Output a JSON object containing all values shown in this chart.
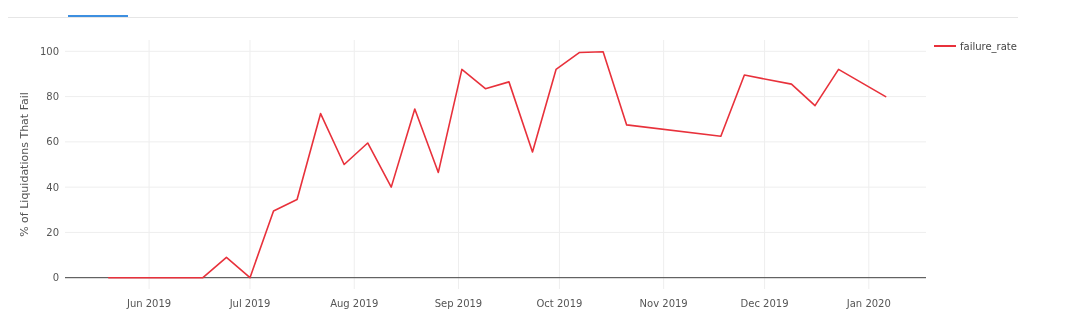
{
  "chart_data": {
    "type": "line",
    "ylabel": "% of Liquidations That Fail",
    "x": [
      "2019-05-20",
      "2019-05-27",
      "2019-06-03",
      "2019-06-10",
      "2019-06-17",
      "2019-06-24",
      "2019-07-01",
      "2019-07-08",
      "2019-07-15",
      "2019-07-22",
      "2019-07-29",
      "2019-08-05",
      "2019-08-12",
      "2019-08-19",
      "2019-08-26",
      "2019-09-02",
      "2019-09-09",
      "2019-09-16",
      "2019-09-23",
      "2019-09-30",
      "2019-10-07",
      "2019-10-14",
      "2019-10-21",
      "2019-11-18",
      "2019-11-25",
      "2019-12-09",
      "2019-12-16",
      "2019-12-23",
      "2020-01-06"
    ],
    "series": [
      {
        "name": "failure_rate",
        "color": "#e8313b",
        "values": [
          0,
          0,
          0,
          0,
          0,
          9,
          0,
          29.5,
          34.5,
          72.5,
          50,
          59.5,
          40,
          74.5,
          46.5,
          92,
          83.5,
          86.5,
          55.5,
          92,
          99.5,
          99.8,
          67.5,
          62.5,
          89.5,
          85.5,
          76,
          92,
          80
        ]
      }
    ],
    "xlim": [
      "2019-05-07",
      "2020-01-18"
    ],
    "xticks": [
      {
        "value": "2019-06-01",
        "label": "Jun 2019"
      },
      {
        "value": "2019-07-01",
        "label": "Jul 2019"
      },
      {
        "value": "2019-08-01",
        "label": "Aug 2019"
      },
      {
        "value": "2019-09-01",
        "label": "Sep 2019"
      },
      {
        "value": "2019-10-01",
        "label": "Oct 2019"
      },
      {
        "value": "2019-11-01",
        "label": "Nov 2019"
      },
      {
        "value": "2019-12-01",
        "label": "Dec 2019"
      },
      {
        "value": "2020-01-01",
        "label": "Jan 2020"
      }
    ],
    "ylim": [
      -5,
      105
    ],
    "yticks": [
      0,
      20,
      40,
      60,
      80,
      100
    ],
    "grid": true,
    "legend": "top right",
    "marker": "none",
    "line_style": "solid"
  }
}
